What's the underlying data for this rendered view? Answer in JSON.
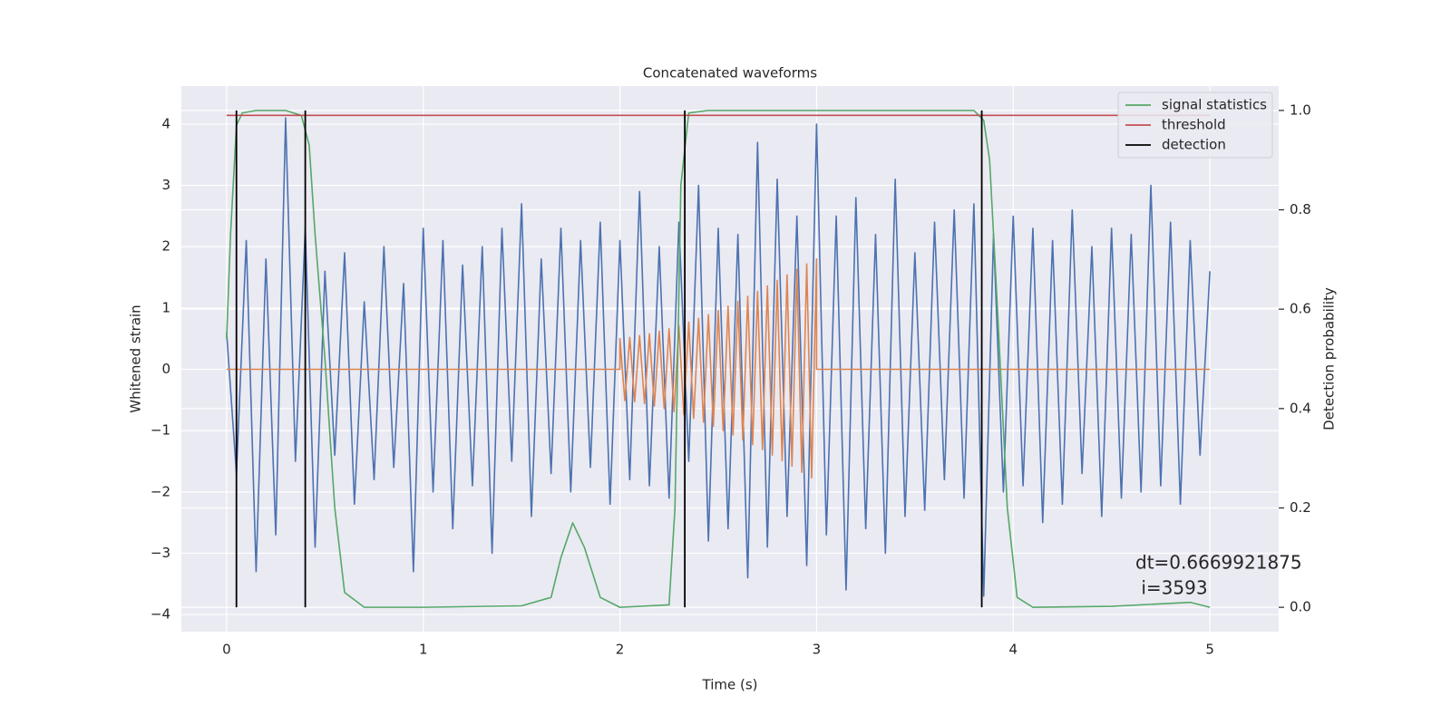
{
  "chart_data": {
    "type": "line",
    "title": "Concatenated waveforms",
    "xlabel": "Time (s)",
    "ylabel": "Whitened strain",
    "y2label": "Detection probability",
    "xlim": [
      -0.23,
      5.35
    ],
    "ylim": [
      -4.28,
      4.62
    ],
    "y2lim": [
      -0.049,
      1.049
    ],
    "xticks": [
      0,
      1,
      2,
      3,
      4,
      5
    ],
    "yticks": [
      {
        "value": -4,
        "label": "−4"
      },
      {
        "value": -3,
        "label": "−3"
      },
      {
        "value": -2,
        "label": "−2"
      },
      {
        "value": -1,
        "label": "−1"
      },
      0,
      1,
      2,
      3,
      4
    ],
    "y2ticks": [
      {
        "value": 0,
        "label": "0.0"
      },
      0.2,
      0.4,
      0.6,
      0.8,
      {
        "value": 1,
        "label": "1.0"
      }
    ],
    "grid": true,
    "legend": "upper right",
    "annotation": [
      "dt=0.6669921875",
      " i=3593"
    ],
    "series": [
      {
        "color": "#4c72b0",
        "style": "line",
        "x": [
          0,
          0.05,
          0.1,
          0.15,
          0.2,
          0.25,
          0.3,
          0.35,
          0.4,
          0.45,
          0.5,
          0.55,
          0.6,
          0.65,
          0.7,
          0.75,
          0.8,
          0.85,
          0.9,
          0.95,
          1,
          1.05,
          1.1,
          1.15,
          1.2,
          1.25,
          1.3,
          1.35,
          1.4,
          1.45,
          1.5,
          1.55,
          1.6,
          1.65,
          1.7,
          1.75,
          1.8,
          1.85,
          1.9,
          1.95,
          2,
          2.05,
          2.1,
          2.15,
          2.2,
          2.25,
          2.3,
          2.35,
          2.4,
          2.45,
          2.5,
          2.55,
          2.6,
          2.65,
          2.7,
          2.75,
          2.8,
          2.85,
          2.9,
          2.95,
          3,
          3.05,
          3.1,
          3.15,
          3.2,
          3.25,
          3.3,
          3.35,
          3.4,
          3.45,
          3.5,
          3.55,
          3.6,
          3.65,
          3.7,
          3.75,
          3.8,
          3.85,
          3.9,
          3.95,
          4,
          4.05,
          4.1,
          4.15,
          4.2,
          4.25,
          4.3,
          4.35,
          4.4,
          4.45,
          4.5,
          4.55,
          4.6,
          4.65,
          4.7,
          4.75,
          4.8,
          4.85,
          4.9,
          4.95,
          5
        ],
        "values": [
          0.6,
          -1.7,
          2.1,
          -3.3,
          1.8,
          -2.7,
          4.1,
          -1.5,
          2.3,
          -2.9,
          1.6,
          -1.4,
          1.9,
          -2.2,
          1.1,
          -1.8,
          2.0,
          -1.6,
          1.4,
          -3.3,
          2.3,
          -2.0,
          2.1,
          -2.6,
          1.7,
          -1.9,
          2.0,
          -3.0,
          2.3,
          -1.5,
          2.7,
          -2.4,
          1.8,
          -1.7,
          2.3,
          -2.0,
          2.1,
          -1.6,
          2.4,
          -2.2,
          2.1,
          -1.8,
          2.9,
          -1.9,
          2.0,
          -2.1,
          2.4,
          -1.5,
          3.0,
          -2.8,
          2.3,
          -2.6,
          2.2,
          -3.4,
          3.7,
          -2.9,
          3.1,
          -2.4,
          2.5,
          -3.2,
          4.0,
          -2.7,
          2.5,
          -3.6,
          2.8,
          -2.6,
          2.2,
          -3.0,
          3.1,
          -2.4,
          1.9,
          -2.3,
          2.4,
          -1.8,
          2.6,
          -2.1,
          2.7,
          -3.7,
          2.2,
          -2.0,
          2.5,
          -1.9,
          2.3,
          -2.5,
          2.1,
          -2.2,
          2.6,
          -1.7,
          2.0,
          -2.4,
          2.3,
          -2.1,
          2.2,
          -2.0,
          3.0,
          -1.9,
          2.4,
          -2.2,
          2.1,
          -1.4,
          1.6
        ]
      },
      {
        "color": "#dd8452",
        "style": "line",
        "x": [
          0,
          2,
          2,
          2.025,
          2.05,
          2.075,
          2.1,
          2.125,
          2.15,
          2.175,
          2.2,
          2.225,
          2.25,
          2.275,
          2.3,
          2.325,
          2.35,
          2.375,
          2.4,
          2.425,
          2.45,
          2.475,
          2.5,
          2.525,
          2.55,
          2.575,
          2.6,
          2.625,
          2.65,
          2.675,
          2.7,
          2.725,
          2.75,
          2.775,
          2.8,
          2.825,
          2.85,
          2.875,
          2.9,
          2.925,
          2.95,
          2.975,
          3,
          3,
          5
        ],
        "values": [
          0,
          0,
          0.5,
          -0.51,
          0.52,
          -0.53,
          0.55,
          -0.56,
          0.58,
          -0.6,
          0.62,
          -0.64,
          0.66,
          -0.69,
          0.71,
          -0.74,
          0.77,
          -0.8,
          0.83,
          -0.86,
          0.89,
          -0.93,
          0.96,
          -1.0,
          1.03,
          -1.07,
          1.11,
          -1.15,
          1.19,
          -1.23,
          1.27,
          -1.31,
          1.36,
          -1.4,
          1.45,
          -1.49,
          1.54,
          -1.58,
          1.63,
          -1.68,
          1.72,
          -1.77,
          1.8,
          0,
          0
        ]
      },
      {
        "name": "signal statistics",
        "color": "#55a868",
        "style": "line",
        "axis": "y2",
        "x": [
          0,
          0.02,
          0.05,
          0.08,
          0.15,
          0.3,
          0.38,
          0.42,
          0.45,
          0.5,
          0.55,
          0.6,
          0.7,
          1.0,
          1.5,
          1.65,
          1.7,
          1.76,
          1.82,
          1.9,
          2.0,
          2.25,
          2.28,
          2.31,
          2.35,
          2.45,
          3.0,
          3.8,
          3.85,
          3.88,
          3.92,
          3.97,
          4.02,
          4.1,
          4.5,
          4.9,
          5.0
        ],
        "values": [
          0.54,
          0.75,
          0.97,
          0.995,
          1.0,
          1.0,
          0.99,
          0.93,
          0.75,
          0.5,
          0.2,
          0.03,
          0.0,
          0.0,
          0.003,
          0.02,
          0.1,
          0.17,
          0.12,
          0.02,
          0.0,
          0.005,
          0.2,
          0.85,
          0.995,
          1.0,
          1.0,
          1.0,
          0.98,
          0.9,
          0.6,
          0.2,
          0.02,
          0.0,
          0.002,
          0.01,
          0.0
        ]
      },
      {
        "name": "threshold",
        "color": "#c44e52",
        "style": "line",
        "axis": "y2",
        "x": [
          0,
          5
        ],
        "values": [
          0.99,
          0.99
        ]
      },
      {
        "name": "detection",
        "color": "#000000",
        "style": "stem",
        "axis": "y2",
        "x": [
          0.05,
          0.4,
          2.33,
          3.84
        ],
        "values": [
          1,
          1,
          1,
          1
        ]
      }
    ]
  }
}
